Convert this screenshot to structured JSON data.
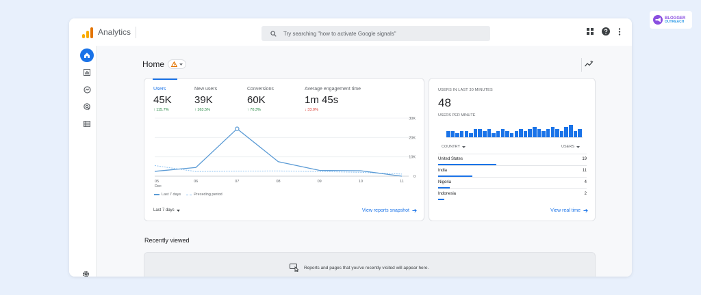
{
  "app": {
    "title": "Analytics"
  },
  "search": {
    "placeholder": "Try searching \"how to activate Google signals\""
  },
  "top_icons": [
    "apps-grid-icon",
    "help-icon",
    "more-vert-icon"
  ],
  "nav": [
    "home-icon",
    "reports-icon",
    "explore-icon",
    "advertising-icon",
    "configure-icon"
  ],
  "page": {
    "title": "Home"
  },
  "metrics": [
    {
      "label": "Users",
      "value": "45K",
      "delta": "↑ 115.7%",
      "direction": "up"
    },
    {
      "label": "New users",
      "value": "39K",
      "delta": "↑ 163.5%",
      "direction": "up"
    },
    {
      "label": "Conversions",
      "value": "60K",
      "delta": "↑ 70.3%",
      "direction": "up"
    },
    {
      "label": "Average engagement time",
      "value": "1m 45s",
      "delta": "↓ 33.0%",
      "direction": "down"
    }
  ],
  "chart_data": {
    "type": "line",
    "categories": [
      "05 Dec",
      "06",
      "07",
      "08",
      "09",
      "10",
      "11"
    ],
    "y_ticks": [
      "30K",
      "20K",
      "10K",
      "0"
    ],
    "ylim": [
      0,
      30000
    ],
    "series": [
      {
        "name": "Last 7 days",
        "values": [
          2500,
          4500,
          24500,
          7500,
          3000,
          2800,
          0
        ]
      },
      {
        "name": "Preceding period",
        "values": [
          5500,
          2400,
          2600,
          2700,
          2400,
          2000,
          1100
        ]
      }
    ],
    "grid": true,
    "legend_position": "bottom-left"
  },
  "main_card": {
    "range_label": "Last 7 days",
    "link": "View reports snapshot"
  },
  "realtime": {
    "heading": "USERS IN LAST 30 MINUTES",
    "count": "48",
    "per_minute_label": "USERS PER MINUTE",
    "per_minute_values": [
      3,
      3,
      2,
      3,
      3,
      2,
      4,
      4,
      3,
      4,
      2,
      3,
      4,
      3,
      2,
      3,
      4,
      3,
      4,
      5,
      4,
      3,
      4,
      5,
      4,
      3,
      5,
      6,
      3,
      4
    ],
    "col_country": "COUNTRY",
    "col_users": "USERS",
    "rows": [
      {
        "country": "United States",
        "users": "19",
        "share": 0.39
      },
      {
        "country": "India",
        "users": "11",
        "share": 0.23
      },
      {
        "country": "Nigeria",
        "users": "4",
        "share": 0.08
      },
      {
        "country": "Indonesia",
        "users": "2",
        "share": 0.04
      }
    ],
    "link": "View real time"
  },
  "recent": {
    "title": "Recently viewed",
    "empty_message": "Reports and pages that you've recently visited will appear here."
  },
  "brand": {
    "line1": "BLOGGER",
    "line2": "OUTREACH"
  },
  "colors": {
    "accent": "#1a73e8",
    "line": "#5b9bd5",
    "compare_line": "#8ec3f2",
    "up": "#188038",
    "down": "#d93025"
  }
}
